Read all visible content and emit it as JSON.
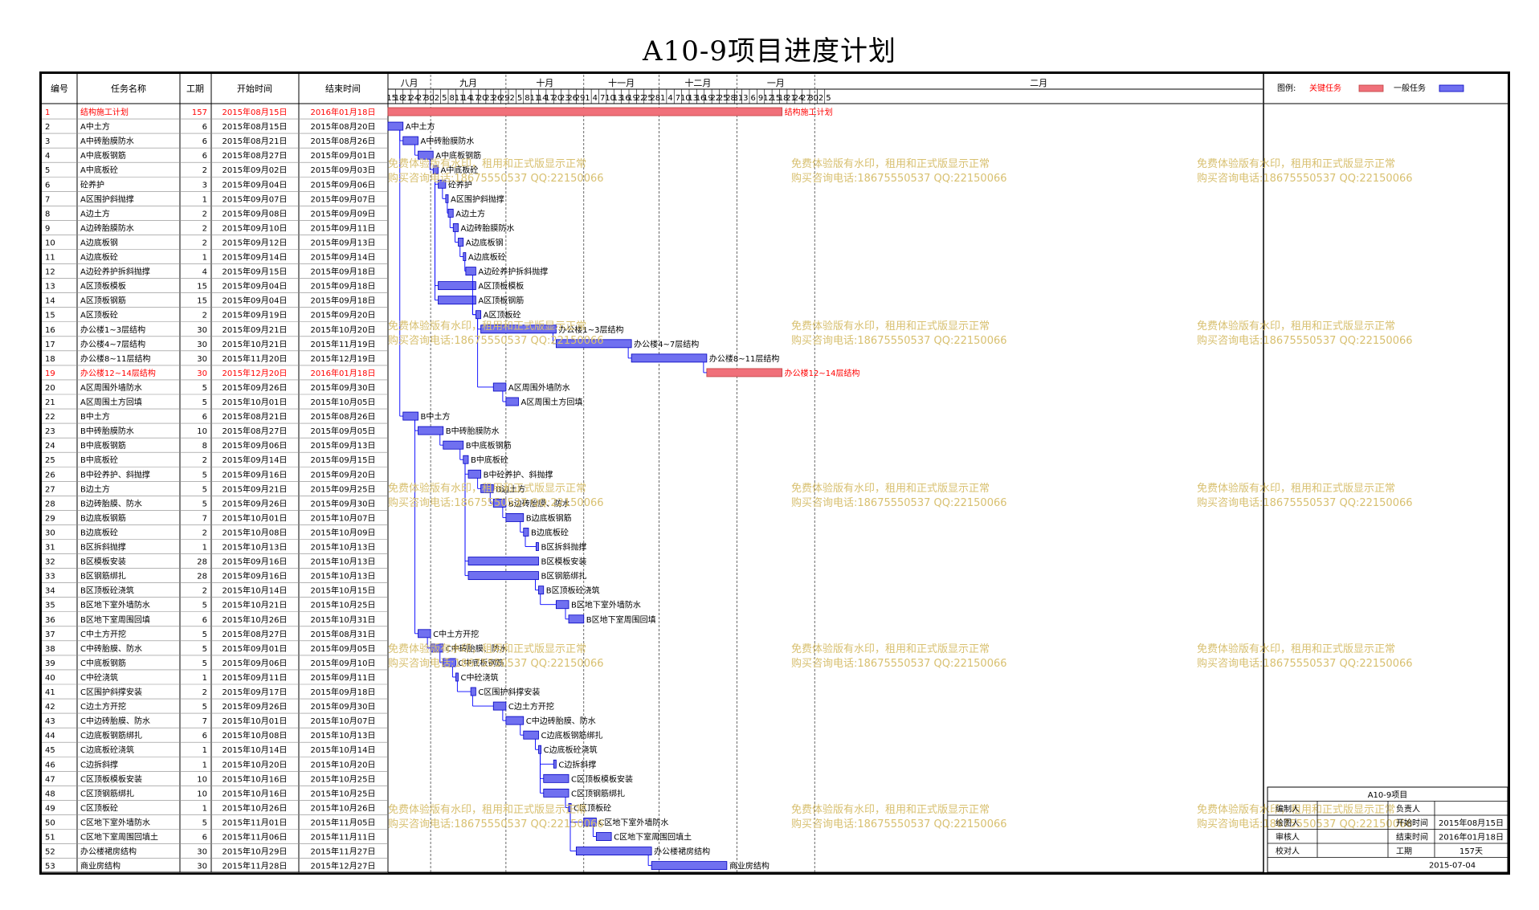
{
  "title": "A10-9项目进度计划",
  "columns": [
    "编号",
    "任务名称",
    "工期",
    "开始时间",
    "结束时间"
  ],
  "months": [
    "八月",
    "九月",
    "十月",
    "十一月",
    "十二月",
    "一月",
    "二月"
  ],
  "day_ticks": [
    "15",
    "18",
    "21",
    "24",
    "27",
    "30",
    "2",
    "5",
    "8",
    "11",
    "14",
    "17",
    "20",
    "23",
    "26",
    "29",
    "2",
    "5",
    "8",
    "11",
    "14",
    "17",
    "20",
    "23",
    "26",
    "29",
    "1",
    "4",
    "7",
    "10",
    "13",
    "16",
    "19",
    "22",
    "25",
    "28",
    "1",
    "4",
    "7",
    "10",
    "13",
    "16",
    "19",
    "22",
    "25",
    "28",
    "31",
    "3",
    "6",
    "9",
    "12",
    "15",
    "18",
    "21",
    "24",
    "27",
    "30",
    "2",
    "5"
  ],
  "legend": {
    "label": "图例:",
    "critical_label": "关键任务",
    "normal_label": "一般任务"
  },
  "colors": {
    "critical": "#f0707a",
    "critical_text": "#ff0000",
    "normal": "#7070f0",
    "normal_border": "#0000c0",
    "link": "#0000ff",
    "watermark": "#d8c070"
  },
  "watermark_lines": [
    "免费体验版有水印，租用和正式版显示正常",
    "购买咨询电话:18675550537 QQ:22150066"
  ],
  "info_block": {
    "project": "A10-9项目",
    "rows": [
      [
        "编制人",
        "",
        "负责人",
        ""
      ],
      [
        "绘图人",
        "",
        "开始时间",
        "2015年08月15日"
      ],
      [
        "审核人",
        "",
        "结束时间",
        "2016年01月18日"
      ],
      [
        "校对人",
        "",
        "工期",
        "157天"
      ]
    ],
    "date": "2015-07-04"
  },
  "chart_data": {
    "type": "gantt",
    "date_range": [
      "2015-08-15",
      "2016-02-04"
    ],
    "tasks": [
      {
        "id": "1",
        "name": "结构施工计划",
        "days": 157,
        "start": "2015年08月15日",
        "end": "2016年01月18日",
        "critical": true
      },
      {
        "id": "2",
        "name": "A中土方",
        "days": 6,
        "start": "2015年08月15日",
        "end": "2015年08月20日"
      },
      {
        "id": "3",
        "name": "A中砖胎膜防水",
        "days": 6,
        "start": "2015年08月21日",
        "end": "2015年08月26日"
      },
      {
        "id": "4",
        "name": "A中底板钢筋",
        "days": 6,
        "start": "2015年08月27日",
        "end": "2015年09月01日"
      },
      {
        "id": "5",
        "name": "A中底板砼",
        "days": 2,
        "start": "2015年09月02日",
        "end": "2015年09月03日"
      },
      {
        "id": "6",
        "name": "砼养护",
        "days": 3,
        "start": "2015年09月04日",
        "end": "2015年09月06日"
      },
      {
        "id": "7",
        "name": "A区围护斜抛撑",
        "days": 1,
        "start": "2015年09月07日",
        "end": "2015年09月07日"
      },
      {
        "id": "8",
        "name": "A边土方",
        "days": 2,
        "start": "2015年09月08日",
        "end": "2015年09月09日"
      },
      {
        "id": "9",
        "name": "A边砖胎膜防水",
        "days": 2,
        "start": "2015年09月10日",
        "end": "2015年09月11日"
      },
      {
        "id": "10",
        "name": "A边底板钢",
        "days": 2,
        "start": "2015年09月12日",
        "end": "2015年09月13日"
      },
      {
        "id": "11",
        "name": "A边底板砼",
        "days": 1,
        "start": "2015年09月14日",
        "end": "2015年09月14日"
      },
      {
        "id": "12",
        "name": "A边砼养护拆斜抛撑",
        "days": 4,
        "start": "2015年09月15日",
        "end": "2015年09月18日"
      },
      {
        "id": "13",
        "name": "A区顶板模板",
        "days": 15,
        "start": "2015年09月04日",
        "end": "2015年09月18日"
      },
      {
        "id": "14",
        "name": "A区顶板钢筋",
        "days": 15,
        "start": "2015年09月04日",
        "end": "2015年09月18日"
      },
      {
        "id": "15",
        "name": "A区顶板砼",
        "days": 2,
        "start": "2015年09月19日",
        "end": "2015年09月20日"
      },
      {
        "id": "16",
        "name": "办公楼1~3层结构",
        "days": 30,
        "start": "2015年09月21日",
        "end": "2015年10月20日"
      },
      {
        "id": "17",
        "name": "办公楼4~7层结构",
        "days": 30,
        "start": "2015年10月21日",
        "end": "2015年11月19日"
      },
      {
        "id": "18",
        "name": "办公楼8~11层结构",
        "days": 30,
        "start": "2015年11月20日",
        "end": "2015年12月19日"
      },
      {
        "id": "19",
        "name": "办公楼12~14层结构",
        "days": 30,
        "start": "2015年12月20日",
        "end": "2016年01月18日",
        "critical": true
      },
      {
        "id": "20",
        "name": "A区周围外墙防水",
        "days": 5,
        "start": "2015年09月26日",
        "end": "2015年09月30日"
      },
      {
        "id": "21",
        "name": "A区周围土方回填",
        "days": 5,
        "start": "2015年10月01日",
        "end": "2015年10月05日"
      },
      {
        "id": "22",
        "name": "B中土方",
        "days": 6,
        "start": "2015年08月21日",
        "end": "2015年08月26日"
      },
      {
        "id": "23",
        "name": "B中砖胎膜防水",
        "days": 10,
        "start": "2015年08月27日",
        "end": "2015年09月05日"
      },
      {
        "id": "24",
        "name": "B中底板钢筋",
        "days": 8,
        "start": "2015年09月06日",
        "end": "2015年09月13日"
      },
      {
        "id": "25",
        "name": "B中底板砼",
        "days": 2,
        "start": "2015年09月14日",
        "end": "2015年09月15日"
      },
      {
        "id": "26",
        "name": "B中砼养护、斜抛撑",
        "days": 5,
        "start": "2015年09月16日",
        "end": "2015年09月20日"
      },
      {
        "id": "27",
        "name": "B边土方",
        "days": 5,
        "start": "2015年09月21日",
        "end": "2015年09月25日"
      },
      {
        "id": "28",
        "name": "B边砖胎膜、防水",
        "days": 5,
        "start": "2015年09月26日",
        "end": "2015年09月30日"
      },
      {
        "id": "29",
        "name": "B边底板钢筋",
        "days": 7,
        "start": "2015年10月01日",
        "end": "2015年10月07日"
      },
      {
        "id": "30",
        "name": "B边底板砼",
        "days": 2,
        "start": "2015年10月08日",
        "end": "2015年10月09日"
      },
      {
        "id": "31",
        "name": "B区拆斜抛撑",
        "days": 1,
        "start": "2015年10月13日",
        "end": "2015年10月13日"
      },
      {
        "id": "32",
        "name": "B区模板安装",
        "days": 28,
        "start": "2015年09月16日",
        "end": "2015年10月13日"
      },
      {
        "id": "33",
        "name": "B区钢筋绑扎",
        "days": 28,
        "start": "2015年09月16日",
        "end": "2015年10月13日"
      },
      {
        "id": "34",
        "name": "B区顶板砼浇筑",
        "days": 2,
        "start": "2015年10月14日",
        "end": "2015年10月15日"
      },
      {
        "id": "35",
        "name": "B区地下室外墙防水",
        "days": 5,
        "start": "2015年10月21日",
        "end": "2015年10月25日"
      },
      {
        "id": "36",
        "name": "B区地下室周围回填",
        "days": 6,
        "start": "2015年10月26日",
        "end": "2015年10月31日"
      },
      {
        "id": "37",
        "name": "C中土方开挖",
        "days": 5,
        "start": "2015年08月27日",
        "end": "2015年08月31日"
      },
      {
        "id": "38",
        "name": "C中砖胎膜、防水",
        "days": 5,
        "start": "2015年09月01日",
        "end": "2015年09月05日"
      },
      {
        "id": "39",
        "name": "C中底板钢筋",
        "days": 5,
        "start": "2015年09月06日",
        "end": "2015年09月10日"
      },
      {
        "id": "40",
        "name": "C中砼浇筑",
        "days": 1,
        "start": "2015年09月11日",
        "end": "2015年09月11日"
      },
      {
        "id": "41",
        "name": "C区围护斜撑安装",
        "days": 2,
        "start": "2015年09月17日",
        "end": "2015年09月18日"
      },
      {
        "id": "42",
        "name": "C边土方开挖",
        "days": 5,
        "start": "2015年09月26日",
        "end": "2015年09月30日"
      },
      {
        "id": "43",
        "name": "C中边砖胎膜、防水",
        "days": 7,
        "start": "2015年10月01日",
        "end": "2015年10月07日"
      },
      {
        "id": "44",
        "name": "C边底板钢筋绑扎",
        "days": 6,
        "start": "2015年10月08日",
        "end": "2015年10月13日"
      },
      {
        "id": "45",
        "name": "C边底板砼浇筑",
        "days": 1,
        "start": "2015年10月14日",
        "end": "2015年10月14日"
      },
      {
        "id": "46",
        "name": "C边拆斜撑",
        "days": 1,
        "start": "2015年10月20日",
        "end": "2015年10月20日"
      },
      {
        "id": "47",
        "name": "C区顶板模板安装",
        "days": 10,
        "start": "2015年10月16日",
        "end": "2015年10月25日"
      },
      {
        "id": "48",
        "name": "C区顶钢筋绑扎",
        "days": 10,
        "start": "2015年10月16日",
        "end": "2015年10月25日"
      },
      {
        "id": "49",
        "name": "C区顶板砼",
        "days": 1,
        "start": "2015年10月26日",
        "end": "2015年10月26日"
      },
      {
        "id": "50",
        "name": "C区地下室外墙防水",
        "days": 5,
        "start": "2015年11月01日",
        "end": "2015年11月05日"
      },
      {
        "id": "51",
        "name": "C区地下室周围回填土",
        "days": 6,
        "start": "2015年11月06日",
        "end": "2015年11月11日"
      },
      {
        "id": "52",
        "name": "办公楼裙房结构",
        "days": 30,
        "start": "2015年10月29日",
        "end": "2015年11月27日"
      },
      {
        "id": "53",
        "name": "商业房结构",
        "days": 30,
        "start": "2015年11月28日",
        "end": "2015年12月27日"
      }
    ],
    "bar_labels": {
      "1": "结构施工计划",
      "2": "A中土方",
      "3": "A中砖胎膜防水",
      "4": "A中底板钢筋",
      "5": "A中底板砼",
      "6": "砼养护",
      "7": "A区围护斜抛撑",
      "8": "A边土方",
      "9": "A边砖胎膜防水",
      "10": "A边底板钢",
      "11": "A边底板砼",
      "12": "A边砼养护拆斜抛撑",
      "13": "A区顶板模板",
      "14": "A区顶板钢筋",
      "15": "A区顶板砼",
      "16": "办公楼1~3层结构",
      "17": "办公楼4~7层结构",
      "18": "办公楼8~11层结构",
      "19": "办公楼12~14层结构",
      "20": "A区周围外墙防水",
      "21": "A区周围土方回填",
      "22": "B中土方",
      "23": "B中砖胎膜防水",
      "24": "B中底板钢筋",
      "25": "B中底板砼",
      "26": "B中砼养护、斜抛撑",
      "27": "B边土方",
      "28": "B边砖胎膜、防水",
      "29": "B边底板钢筋",
      "30": "B边底板砼",
      "31": "B区拆斜抛撑",
      "32": "B区模板安装",
      "33": "B区钢筋绑扎",
      "34": "B区顶板砼浇筑",
      "35": "B区地下室外墙防水",
      "36": "B区地下室周围回填",
      "37": "C中土方开挖",
      "38": "C中砖胎膜、防水",
      "39": "C中底板钢筋",
      "40": "C中砼浇筑",
      "41": "C区围护斜撑安装",
      "42": "C边土方开挖",
      "43": "C中边砖胎膜、防水",
      "44": "C边底板钢筋绑扎",
      "45": "C边底板砼浇筑",
      "46": "C边拆斜撑",
      "47": "C区顶板模板安装",
      "48": "C区顶钢筋绑扎",
      "49": "C区顶板砼",
      "50": "C区地下室外墙防水",
      "51": "C区地下室周围回填土",
      "52": "办公楼裙房结构",
      "53": "商业房结构"
    },
    "links": [
      [
        "2",
        "3"
      ],
      [
        "3",
        "4"
      ],
      [
        "4",
        "5"
      ],
      [
        "5",
        "6"
      ],
      [
        "6",
        "7"
      ],
      [
        "7",
        "8"
      ],
      [
        "8",
        "9"
      ],
      [
        "9",
        "10"
      ],
      [
        "10",
        "11"
      ],
      [
        "11",
        "12"
      ],
      [
        "5",
        "13"
      ],
      [
        "5",
        "14"
      ],
      [
        "12",
        "15"
      ],
      [
        "14",
        "15"
      ],
      [
        "15",
        "16"
      ],
      [
        "16",
        "17"
      ],
      [
        "17",
        "18"
      ],
      [
        "18",
        "19"
      ],
      [
        "15",
        "20"
      ],
      [
        "20",
        "21"
      ],
      [
        "2",
        "22"
      ],
      [
        "22",
        "23"
      ],
      [
        "23",
        "24"
      ],
      [
        "24",
        "25"
      ],
      [
        "25",
        "26"
      ],
      [
        "26",
        "27"
      ],
      [
        "27",
        "28"
      ],
      [
        "28",
        "29"
      ],
      [
        "29",
        "30"
      ],
      [
        "30",
        "31"
      ],
      [
        "25",
        "32"
      ],
      [
        "25",
        "33"
      ],
      [
        "33",
        "34"
      ],
      [
        "34",
        "35"
      ],
      [
        "35",
        "36"
      ],
      [
        "22",
        "37"
      ],
      [
        "37",
        "38"
      ],
      [
        "38",
        "39"
      ],
      [
        "39",
        "40"
      ],
      [
        "40",
        "41"
      ],
      [
        "41",
        "42"
      ],
      [
        "42",
        "43"
      ],
      [
        "43",
        "44"
      ],
      [
        "44",
        "45"
      ],
      [
        "45",
        "46"
      ],
      [
        "45",
        "47"
      ],
      [
        "45",
        "48"
      ],
      [
        "48",
        "49"
      ],
      [
        "49",
        "50"
      ],
      [
        "50",
        "51"
      ],
      [
        "49",
        "52"
      ],
      [
        "52",
        "53"
      ]
    ]
  }
}
